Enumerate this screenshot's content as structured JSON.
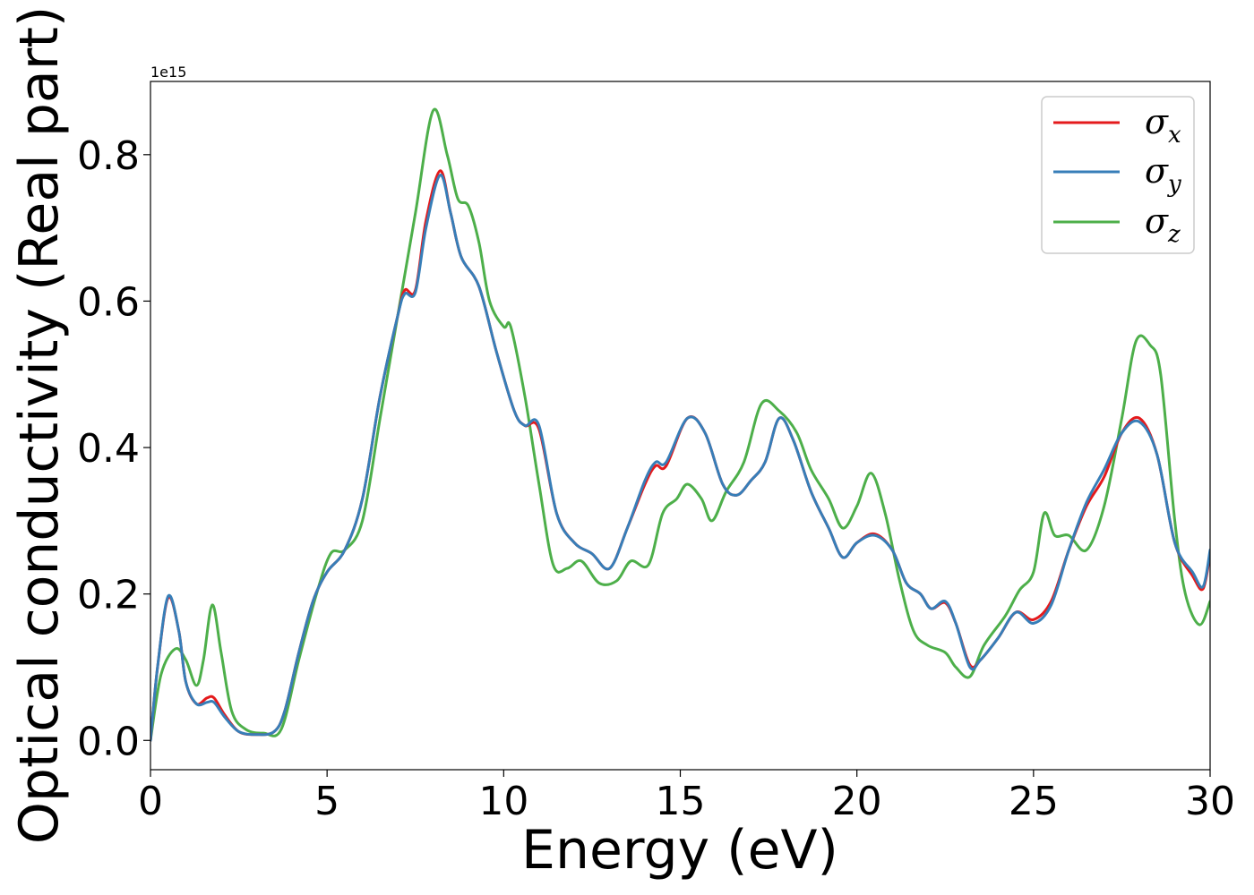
{
  "chart_data": {
    "type": "line",
    "xlabel": "Energy (eV)",
    "ylabel": "Optical conductivity (Real part)",
    "y_offset_label": "1e15",
    "xlim": [
      0,
      30
    ],
    "ylim": [
      -0.04,
      0.9
    ],
    "x_ticks": [
      0,
      5,
      10,
      15,
      20,
      25,
      30
    ],
    "x_tick_labels": [
      "0",
      "5",
      "10",
      "15",
      "20",
      "25",
      "30"
    ],
    "y_ticks": [
      0.0,
      0.2,
      0.4,
      0.6,
      0.8
    ],
    "y_tick_labels": [
      "0.0",
      "0.2",
      "0.4",
      "0.6",
      "0.8"
    ],
    "grid": false,
    "legend_position": "top-right",
    "series": [
      {
        "name": "σx",
        "symbol": "σ",
        "subscript": "x",
        "color": "#e41a1c",
        "points": [
          [
            0,
            0.0
          ],
          [
            0.2,
            0.1
          ],
          [
            0.5,
            0.195
          ],
          [
            0.8,
            0.15
          ],
          [
            1.0,
            0.08
          ],
          [
            1.3,
            0.05
          ],
          [
            1.6,
            0.058
          ],
          [
            1.8,
            0.058
          ],
          [
            2.1,
            0.035
          ],
          [
            2.5,
            0.012
          ],
          [
            3.0,
            0.008
          ],
          [
            3.5,
            0.012
          ],
          [
            3.8,
            0.04
          ],
          [
            4.2,
            0.12
          ],
          [
            4.6,
            0.19
          ],
          [
            5.0,
            0.23
          ],
          [
            5.5,
            0.26
          ],
          [
            6.0,
            0.33
          ],
          [
            6.5,
            0.47
          ],
          [
            7.0,
            0.58
          ],
          [
            7.2,
            0.615
          ],
          [
            7.5,
            0.615
          ],
          [
            7.8,
            0.71
          ],
          [
            8.2,
            0.778
          ],
          [
            8.5,
            0.72
          ],
          [
            8.8,
            0.66
          ],
          [
            9.3,
            0.62
          ],
          [
            9.8,
            0.53
          ],
          [
            10.3,
            0.45
          ],
          [
            10.6,
            0.43
          ],
          [
            11.0,
            0.425
          ],
          [
            11.5,
            0.31
          ],
          [
            12.0,
            0.27
          ],
          [
            12.5,
            0.255
          ],
          [
            13.0,
            0.235
          ],
          [
            13.5,
            0.29
          ],
          [
            14.0,
            0.35
          ],
          [
            14.3,
            0.375
          ],
          [
            14.6,
            0.375
          ],
          [
            15.2,
            0.44
          ],
          [
            15.7,
            0.42
          ],
          [
            16.2,
            0.35
          ],
          [
            16.6,
            0.335
          ],
          [
            17.0,
            0.355
          ],
          [
            17.4,
            0.38
          ],
          [
            17.8,
            0.44
          ],
          [
            18.2,
            0.41
          ],
          [
            18.7,
            0.34
          ],
          [
            19.2,
            0.29
          ],
          [
            19.6,
            0.25
          ],
          [
            20.0,
            0.27
          ],
          [
            20.5,
            0.282
          ],
          [
            21.0,
            0.26
          ],
          [
            21.4,
            0.215
          ],
          [
            21.8,
            0.2
          ],
          [
            22.1,
            0.18
          ],
          [
            22.5,
            0.188
          ],
          [
            22.8,
            0.16
          ],
          [
            23.2,
            0.103
          ],
          [
            23.5,
            0.11
          ],
          [
            24.0,
            0.14
          ],
          [
            24.5,
            0.175
          ],
          [
            25.0,
            0.165
          ],
          [
            25.5,
            0.19
          ],
          [
            26.0,
            0.26
          ],
          [
            26.5,
            0.32
          ],
          [
            27.0,
            0.36
          ],
          [
            27.5,
            0.42
          ],
          [
            28.0,
            0.44
          ],
          [
            28.5,
            0.39
          ],
          [
            29.0,
            0.27
          ],
          [
            29.5,
            0.225
          ],
          [
            29.8,
            0.207
          ],
          [
            30.0,
            0.255
          ]
        ]
      },
      {
        "name": "σy",
        "symbol": "σ",
        "subscript": "y",
        "color": "#377eb8",
        "points": [
          [
            0,
            0.0
          ],
          [
            0.2,
            0.1
          ],
          [
            0.5,
            0.197
          ],
          [
            0.8,
            0.15
          ],
          [
            1.0,
            0.08
          ],
          [
            1.3,
            0.05
          ],
          [
            1.6,
            0.052
          ],
          [
            1.8,
            0.052
          ],
          [
            2.1,
            0.032
          ],
          [
            2.5,
            0.012
          ],
          [
            3.0,
            0.008
          ],
          [
            3.5,
            0.012
          ],
          [
            3.8,
            0.04
          ],
          [
            4.2,
            0.12
          ],
          [
            4.6,
            0.19
          ],
          [
            5.0,
            0.23
          ],
          [
            5.5,
            0.26
          ],
          [
            6.0,
            0.33
          ],
          [
            6.5,
            0.47
          ],
          [
            7.0,
            0.58
          ],
          [
            7.2,
            0.61
          ],
          [
            7.5,
            0.612
          ],
          [
            7.8,
            0.7
          ],
          [
            8.2,
            0.772
          ],
          [
            8.5,
            0.72
          ],
          [
            8.8,
            0.66
          ],
          [
            9.3,
            0.62
          ],
          [
            9.8,
            0.53
          ],
          [
            10.3,
            0.45
          ],
          [
            10.6,
            0.43
          ],
          [
            11.0,
            0.43
          ],
          [
            11.5,
            0.31
          ],
          [
            12.0,
            0.27
          ],
          [
            12.5,
            0.255
          ],
          [
            13.0,
            0.235
          ],
          [
            13.5,
            0.29
          ],
          [
            14.0,
            0.355
          ],
          [
            14.3,
            0.38
          ],
          [
            14.6,
            0.38
          ],
          [
            15.2,
            0.44
          ],
          [
            15.7,
            0.42
          ],
          [
            16.2,
            0.35
          ],
          [
            16.6,
            0.335
          ],
          [
            17.0,
            0.355
          ],
          [
            17.4,
            0.38
          ],
          [
            17.8,
            0.44
          ],
          [
            18.2,
            0.41
          ],
          [
            18.7,
            0.34
          ],
          [
            19.2,
            0.29
          ],
          [
            19.6,
            0.25
          ],
          [
            20.0,
            0.27
          ],
          [
            20.5,
            0.28
          ],
          [
            21.0,
            0.26
          ],
          [
            21.4,
            0.215
          ],
          [
            21.8,
            0.2
          ],
          [
            22.1,
            0.18
          ],
          [
            22.5,
            0.19
          ],
          [
            22.8,
            0.16
          ],
          [
            23.2,
            0.1
          ],
          [
            23.5,
            0.11
          ],
          [
            24.0,
            0.14
          ],
          [
            24.5,
            0.175
          ],
          [
            25.0,
            0.16
          ],
          [
            25.5,
            0.185
          ],
          [
            26.0,
            0.26
          ],
          [
            26.5,
            0.325
          ],
          [
            27.0,
            0.37
          ],
          [
            27.5,
            0.42
          ],
          [
            28.0,
            0.435
          ],
          [
            28.5,
            0.39
          ],
          [
            29.0,
            0.27
          ],
          [
            29.5,
            0.23
          ],
          [
            29.8,
            0.21
          ],
          [
            30.0,
            0.26
          ]
        ]
      },
      {
        "name": "σz",
        "symbol": "σ",
        "subscript": "z",
        "color": "#4daf4a",
        "points": [
          [
            0,
            0.0
          ],
          [
            0.3,
            0.09
          ],
          [
            0.7,
            0.125
          ],
          [
            1.0,
            0.11
          ],
          [
            1.3,
            0.075
          ],
          [
            1.5,
            0.11
          ],
          [
            1.75,
            0.185
          ],
          [
            2.0,
            0.12
          ],
          [
            2.3,
            0.04
          ],
          [
            2.7,
            0.015
          ],
          [
            3.2,
            0.01
          ],
          [
            3.7,
            0.015
          ],
          [
            4.2,
            0.11
          ],
          [
            4.7,
            0.2
          ],
          [
            5.1,
            0.255
          ],
          [
            5.5,
            0.26
          ],
          [
            6.0,
            0.3
          ],
          [
            6.5,
            0.44
          ],
          [
            7.0,
            0.58
          ],
          [
            7.5,
            0.72
          ],
          [
            8.0,
            0.86
          ],
          [
            8.4,
            0.8
          ],
          [
            8.7,
            0.74
          ],
          [
            9.0,
            0.73
          ],
          [
            9.3,
            0.68
          ],
          [
            9.6,
            0.6
          ],
          [
            10.0,
            0.565
          ],
          [
            10.2,
            0.565
          ],
          [
            10.6,
            0.47
          ],
          [
            11.0,
            0.35
          ],
          [
            11.4,
            0.24
          ],
          [
            11.8,
            0.235
          ],
          [
            12.2,
            0.245
          ],
          [
            12.7,
            0.215
          ],
          [
            13.2,
            0.218
          ],
          [
            13.6,
            0.245
          ],
          [
            14.1,
            0.24
          ],
          [
            14.5,
            0.31
          ],
          [
            14.9,
            0.33
          ],
          [
            15.2,
            0.35
          ],
          [
            15.6,
            0.33
          ],
          [
            15.9,
            0.3
          ],
          [
            16.3,
            0.34
          ],
          [
            16.8,
            0.38
          ],
          [
            17.3,
            0.46
          ],
          [
            17.8,
            0.45
          ],
          [
            18.3,
            0.42
          ],
          [
            18.7,
            0.37
          ],
          [
            19.2,
            0.33
          ],
          [
            19.6,
            0.29
          ],
          [
            20.0,
            0.32
          ],
          [
            20.4,
            0.365
          ],
          [
            20.8,
            0.31
          ],
          [
            21.2,
            0.22
          ],
          [
            21.6,
            0.15
          ],
          [
            22.0,
            0.13
          ],
          [
            22.5,
            0.12
          ],
          [
            22.8,
            0.1
          ],
          [
            23.2,
            0.087
          ],
          [
            23.6,
            0.13
          ],
          [
            24.2,
            0.17
          ],
          [
            24.6,
            0.205
          ],
          [
            25.0,
            0.23
          ],
          [
            25.3,
            0.31
          ],
          [
            25.6,
            0.28
          ],
          [
            26.0,
            0.28
          ],
          [
            26.5,
            0.26
          ],
          [
            27.0,
            0.32
          ],
          [
            27.5,
            0.44
          ],
          [
            27.9,
            0.545
          ],
          [
            28.3,
            0.54
          ],
          [
            28.6,
            0.5
          ],
          [
            29.0,
            0.3
          ],
          [
            29.3,
            0.2
          ],
          [
            29.7,
            0.158
          ],
          [
            30.0,
            0.19
          ]
        ]
      }
    ]
  }
}
